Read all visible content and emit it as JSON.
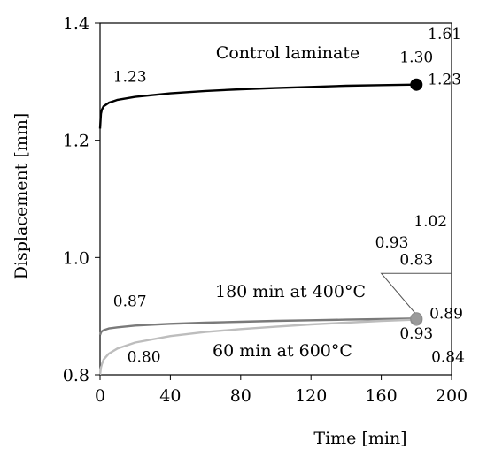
{
  "chart_data": {
    "type": "line",
    "xlabel": "Time [min]",
    "ylabel": "Displacement [mm]",
    "xlim": [
      0,
      200
    ],
    "ylim": [
      0.8,
      1.4
    ],
    "xticks": [
      "0",
      "40",
      "80",
      "120",
      "160",
      "200"
    ],
    "yticks": [
      "0.8",
      "1.0",
      "1.2",
      "1.4"
    ],
    "grid": false,
    "series": [
      {
        "name": "Control laminate",
        "color": "#000000",
        "marker_color": "#000000",
        "x": [
          0,
          0.5,
          1,
          2,
          5,
          10,
          20,
          40,
          60,
          80,
          100,
          120,
          140,
          160,
          180
        ],
        "y": [
          1.22,
          1.245,
          1.252,
          1.258,
          1.264,
          1.269,
          1.274,
          1.28,
          1.284,
          1.287,
          1.289,
          1.291,
          1.293,
          1.294,
          1.295
        ]
      },
      {
        "name": "180 min at 400°C",
        "color": "#7a7a7a",
        "marker_color": "#9a9a9a",
        "x": [
          0,
          0.5,
          1,
          2,
          5,
          10,
          20,
          40,
          60,
          80,
          100,
          120,
          140,
          160,
          180
        ],
        "y": [
          0.868,
          0.872,
          0.874,
          0.876,
          0.879,
          0.881,
          0.884,
          0.887,
          0.889,
          0.8905,
          0.892,
          0.893,
          0.894,
          0.895,
          0.896
        ]
      },
      {
        "name": "60 min at 600°C",
        "color": "#bdbdbd",
        "marker_color": "#bdbdbd",
        "x": [
          0,
          0.5,
          1,
          2,
          5,
          10,
          20,
          40,
          60,
          80,
          100,
          120,
          140,
          160,
          180
        ],
        "y": [
          0.8,
          0.812,
          0.818,
          0.826,
          0.836,
          0.845,
          0.855,
          0.866,
          0.873,
          0.878,
          0.882,
          0.886,
          0.889,
          0.892,
          0.894
        ]
      }
    ],
    "annotations": [
      {
        "text": "1.61",
        "x": 196,
        "y": 1.373
      },
      {
        "text": "1.30",
        "x": 180,
        "y": 1.333
      },
      {
        "text": "1.23",
        "x": 196,
        "y": 1.295
      },
      {
        "text": "1.23",
        "x": 17,
        "y": 1.3
      },
      {
        "text": "1.02",
        "x": 188,
        "y": 1.053
      },
      {
        "text": "0.93",
        "x": 166,
        "y": 1.017
      },
      {
        "text": "0.83",
        "x": 180,
        "y": 0.988
      },
      {
        "text": "0.87",
        "x": 17,
        "y": 0.917
      },
      {
        "text": "0.89",
        "x": 197,
        "y": 0.896
      },
      {
        "text": "0.93",
        "x": 180,
        "y": 0.862
      },
      {
        "text": "0.80",
        "x": 25,
        "y": 0.822
      },
      {
        "text": "0.84",
        "x": 198,
        "y": 0.822
      }
    ]
  }
}
